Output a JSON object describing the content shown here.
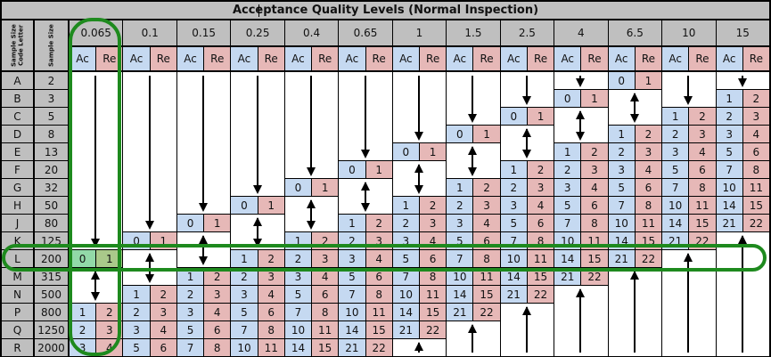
{
  "title": "Acceptance Quality Levels (Normal Inspection)",
  "headers": {
    "code_letter": "Sample Size Code Letter",
    "sample_size": "Sample Size",
    "ac": "Ac",
    "re": "Re"
  },
  "rows": [
    {
      "letter": "A",
      "size": "2"
    },
    {
      "letter": "B",
      "size": "3"
    },
    {
      "letter": "C",
      "size": "5"
    },
    {
      "letter": "D",
      "size": "8"
    },
    {
      "letter": "E",
      "size": "13"
    },
    {
      "letter": "F",
      "size": "20"
    },
    {
      "letter": "G",
      "size": "32"
    },
    {
      "letter": "H",
      "size": "50"
    },
    {
      "letter": "J",
      "size": "80"
    },
    {
      "letter": "K",
      "size": "125"
    },
    {
      "letter": "L",
      "size": "200"
    },
    {
      "letter": "M",
      "size": "315"
    },
    {
      "letter": "N",
      "size": "500"
    },
    {
      "letter": "P",
      "size": "800"
    },
    {
      "letter": "Q",
      "size": "1250"
    },
    {
      "letter": "R",
      "size": "2000"
    }
  ],
  "arrow_legend": {
    "d": "arrow-down",
    "u": "arrow-up",
    "b": "arrow-up-down"
  },
  "columns": [
    {
      "aql": "0.065",
      "cells": [
        "d",
        "d",
        "d",
        "d",
        "d",
        "d",
        "d",
        "d",
        "d",
        "d",
        [
          "0",
          "1"
        ],
        "b",
        "b",
        [
          "1",
          "2"
        ],
        [
          "2",
          "3"
        ],
        [
          "3",
          "4"
        ]
      ]
    },
    {
      "aql": "0.1",
      "cells": [
        "d",
        "d",
        "d",
        "d",
        "d",
        "d",
        "d",
        "d",
        "d",
        [
          "0",
          "1"
        ],
        "b",
        "b",
        [
          "1",
          "2"
        ],
        [
          "2",
          "3"
        ],
        [
          "3",
          "4"
        ],
        [
          "5",
          "6"
        ]
      ]
    },
    {
      "aql": "0.15",
      "cells": [
        "d",
        "d",
        "d",
        "d",
        "d",
        "d",
        "d",
        "d",
        [
          "0",
          "1"
        ],
        "b",
        "b",
        [
          "1",
          "2"
        ],
        [
          "2",
          "3"
        ],
        [
          "3",
          "4"
        ],
        [
          "5",
          "6"
        ],
        [
          "7",
          "8"
        ]
      ]
    },
    {
      "aql": "0.25",
      "cells": [
        "d",
        "d",
        "d",
        "d",
        "d",
        "d",
        "d",
        [
          "0",
          "1"
        ],
        "b",
        "b",
        [
          "1",
          "2"
        ],
        [
          "2",
          "3"
        ],
        [
          "3",
          "4"
        ],
        [
          "5",
          "6"
        ],
        [
          "7",
          "8"
        ],
        [
          "10",
          "11"
        ]
      ]
    },
    {
      "aql": "0.4",
      "cells": [
        "d",
        "d",
        "d",
        "d",
        "d",
        "d",
        [
          "0",
          "1"
        ],
        "b",
        "b",
        [
          "1",
          "2"
        ],
        [
          "2",
          "3"
        ],
        [
          "3",
          "4"
        ],
        [
          "5",
          "6"
        ],
        [
          "7",
          "8"
        ],
        [
          "10",
          "11"
        ],
        [
          "14",
          "15"
        ]
      ]
    },
    {
      "aql": "0.65",
      "cells": [
        "d",
        "d",
        "d",
        "d",
        "d",
        [
          "0",
          "1"
        ],
        "b",
        "b",
        [
          "1",
          "2"
        ],
        [
          "2",
          "3"
        ],
        [
          "3",
          "4"
        ],
        [
          "5",
          "6"
        ],
        [
          "7",
          "8"
        ],
        [
          "10",
          "11"
        ],
        [
          "14",
          "15"
        ],
        [
          "21",
          "22"
        ]
      ]
    },
    {
      "aql": "1",
      "cells": [
        "d",
        "d",
        "d",
        "d",
        [
          "0",
          "1"
        ],
        "b",
        "b",
        [
          "1",
          "2"
        ],
        [
          "2",
          "3"
        ],
        [
          "3",
          "4"
        ],
        [
          "5",
          "6"
        ],
        [
          "7",
          "8"
        ],
        [
          "10",
          "11"
        ],
        [
          "14",
          "15"
        ],
        [
          "21",
          "22"
        ],
        "u"
      ]
    },
    {
      "aql": "1.5",
      "cells": [
        "d",
        "d",
        "d",
        [
          "0",
          "1"
        ],
        "b",
        "b",
        [
          "1",
          "2"
        ],
        [
          "2",
          "3"
        ],
        [
          "3",
          "4"
        ],
        [
          "5",
          "6"
        ],
        [
          "7",
          "8"
        ],
        [
          "10",
          "11"
        ],
        [
          "14",
          "15"
        ],
        [
          "21",
          "22"
        ],
        "u",
        "u"
      ]
    },
    {
      "aql": "2.5",
      "cells": [
        "d",
        "d",
        [
          "0",
          "1"
        ],
        "b",
        "b",
        [
          "1",
          "2"
        ],
        [
          "2",
          "3"
        ],
        [
          "3",
          "4"
        ],
        [
          "5",
          "6"
        ],
        [
          "7",
          "8"
        ],
        [
          "10",
          "11"
        ],
        [
          "14",
          "15"
        ],
        [
          "21",
          "22"
        ],
        "u",
        "u",
        "u"
      ]
    },
    {
      "aql": "4",
      "cells": [
        "d",
        [
          "0",
          "1"
        ],
        "b",
        "b",
        [
          "1",
          "2"
        ],
        [
          "2",
          "3"
        ],
        [
          "3",
          "4"
        ],
        [
          "5",
          "6"
        ],
        [
          "7",
          "8"
        ],
        [
          "10",
          "11"
        ],
        [
          "14",
          "15"
        ],
        [
          "21",
          "22"
        ],
        "u",
        "u",
        "u",
        "u"
      ]
    },
    {
      "aql": "6.5",
      "cells": [
        [
          "0",
          "1"
        ],
        "b",
        "b",
        [
          "1",
          "2"
        ],
        [
          "2",
          "3"
        ],
        [
          "3",
          "4"
        ],
        [
          "5",
          "6"
        ],
        [
          "7",
          "8"
        ],
        [
          "10",
          "11"
        ],
        [
          "14",
          "15"
        ],
        [
          "21",
          "22"
        ],
        "u",
        "u",
        "u",
        "u",
        "u"
      ]
    },
    {
      "aql": "10",
      "cells": [
        "d",
        "d",
        [
          "1",
          "2"
        ],
        [
          "2",
          "3"
        ],
        [
          "3",
          "4"
        ],
        [
          "5",
          "6"
        ],
        [
          "7",
          "8"
        ],
        [
          "10",
          "11"
        ],
        [
          "14",
          "15"
        ],
        [
          "21",
          "22"
        ],
        "u",
        "u",
        "u",
        "u",
        "u",
        "u"
      ]
    },
    {
      "aql": "15",
      "cells": [
        "d",
        [
          "1",
          "2"
        ],
        [
          "2",
          "3"
        ],
        [
          "3",
          "4"
        ],
        [
          "5",
          "6"
        ],
        [
          "7",
          "8"
        ],
        [
          "10",
          "11"
        ],
        [
          "14",
          "15"
        ],
        [
          "21",
          "22"
        ],
        "u",
        "u",
        "u",
        "u",
        "u",
        "u",
        "u"
      ]
    }
  ],
  "highlight": {
    "aql": "0.065",
    "row_letter": "L",
    "outline_color": "#1e8a1e",
    "ac_color": "#92d9a8",
    "re_color": "#a9c98a"
  },
  "colors": {
    "header": "#bfbfbf",
    "ac": "#c5d9f1",
    "re": "#e6b8b7"
  }
}
